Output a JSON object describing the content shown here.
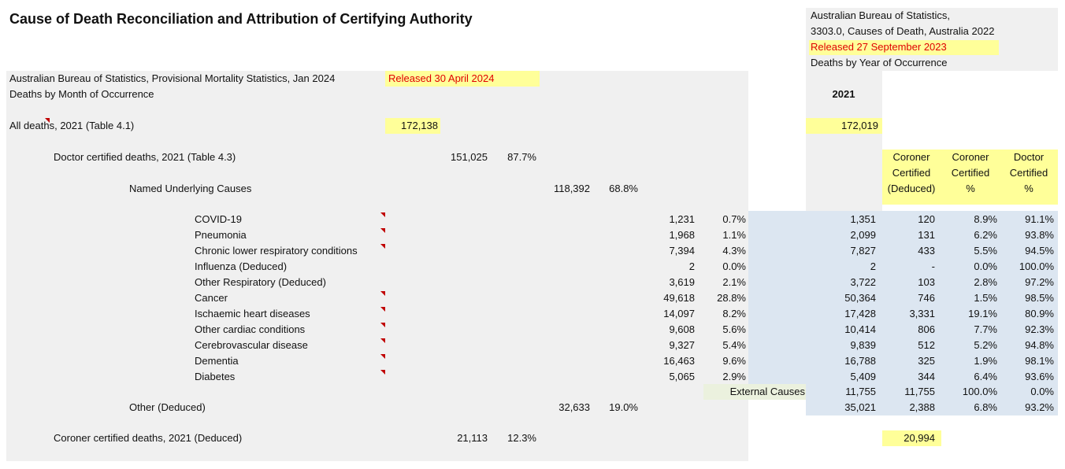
{
  "title": "Cause of Death Reconciliation and Attribution of Certifying Authority",
  "provisional": {
    "source": "Australian Bureau of Statistics, Provisional Mortality Statistics, Jan 2024",
    "released": "Released 30 April 2024",
    "basis": "Deaths by Month of Occurrence"
  },
  "final": {
    "source_line1": "Australian Bureau of Statistics,",
    "source_line2": "3303.0, Causes of Death, Australia 2022",
    "released": "Released 27 September 2023",
    "basis": "Deaths by Year of Occurrence",
    "year": "2021"
  },
  "all_deaths": {
    "label": "All deaths, 2021 (Table 4.1)",
    "provisional": "172,138",
    "final": "172,019"
  },
  "doctor": {
    "label": "Doctor certified deaths, 2021 (Table 4.3)",
    "count": "151,025",
    "pct": "87.7%"
  },
  "named": {
    "label": "Named Underlying Causes",
    "count": "118,392",
    "pct": "68.8%"
  },
  "column_headers": [
    [
      "Coroner",
      "Certified",
      "(Deduced)"
    ],
    [
      "Coroner",
      "Certified",
      "%"
    ],
    [
      "Doctor",
      "Certified",
      "%"
    ]
  ],
  "causes": [
    {
      "label": "COVID-19",
      "count": "1,231",
      "pct": "0.7%",
      "final": "1,351",
      "coroner": "120",
      "coroner_pct": "8.9%",
      "doctor_pct": "91.1%"
    },
    {
      "label": "Pneumonia",
      "count": "1,968",
      "pct": "1.1%",
      "final": "2,099",
      "coroner": "131",
      "coroner_pct": "6.2%",
      "doctor_pct": "93.8%"
    },
    {
      "label": "Chronic lower respiratory conditions",
      "count": "7,394",
      "pct": "4.3%",
      "final": "7,827",
      "coroner": "433",
      "coroner_pct": "5.5%",
      "doctor_pct": "94.5%"
    },
    {
      "label": "Influenza (Deduced)",
      "count": "2",
      "pct": "0.0%",
      "final": "2",
      "coroner": "-",
      "coroner_pct": "0.0%",
      "doctor_pct": "100.0%"
    },
    {
      "label": "Other Respiratory (Deduced)",
      "count": "3,619",
      "pct": "2.1%",
      "final": "3,722",
      "coroner": "103",
      "coroner_pct": "2.8%",
      "doctor_pct": "97.2%"
    },
    {
      "label": "Cancer",
      "count": "49,618",
      "pct": "28.8%",
      "final": "50,364",
      "coroner": "746",
      "coroner_pct": "1.5%",
      "doctor_pct": "98.5%"
    },
    {
      "label": "Ischaemic heart diseases",
      "count": "14,097",
      "pct": "8.2%",
      "final": "17,428",
      "coroner": "3,331",
      "coroner_pct": "19.1%",
      "doctor_pct": "80.9%"
    },
    {
      "label": "Other cardiac conditions",
      "count": "9,608",
      "pct": "5.6%",
      "final": "10,414",
      "coroner": "806",
      "coroner_pct": "7.7%",
      "doctor_pct": "92.3%"
    },
    {
      "label": "Cerebrovascular disease",
      "count": "9,327",
      "pct": "5.4%",
      "final": "9,839",
      "coroner": "512",
      "coroner_pct": "5.2%",
      "doctor_pct": "94.8%"
    },
    {
      "label": "Dementia",
      "count": "16,463",
      "pct": "9.6%",
      "final": "16,788",
      "coroner": "325",
      "coroner_pct": "1.9%",
      "doctor_pct": "98.1%"
    },
    {
      "label": "Diabetes",
      "count": "5,065",
      "pct": "2.9%",
      "final": "5,409",
      "coroner": "344",
      "coroner_pct": "6.4%",
      "doctor_pct": "93.6%"
    }
  ],
  "external": {
    "label": "External Causes",
    "final": "11,755",
    "coroner": "11,755",
    "coroner_pct": "100.0%",
    "doctor_pct": "0.0%"
  },
  "other": {
    "label": "Other (Deduced)",
    "count": "32,633",
    "pct": "19.0%",
    "final": "35,021",
    "coroner": "2,388",
    "coroner_pct": "6.8%",
    "doctor_pct": "93.2%"
  },
  "coroner_total": {
    "label": "Coroner certified deaths, 2021 (Deduced)",
    "count": "21,113",
    "pct": "12.3%",
    "final": "20,994"
  }
}
